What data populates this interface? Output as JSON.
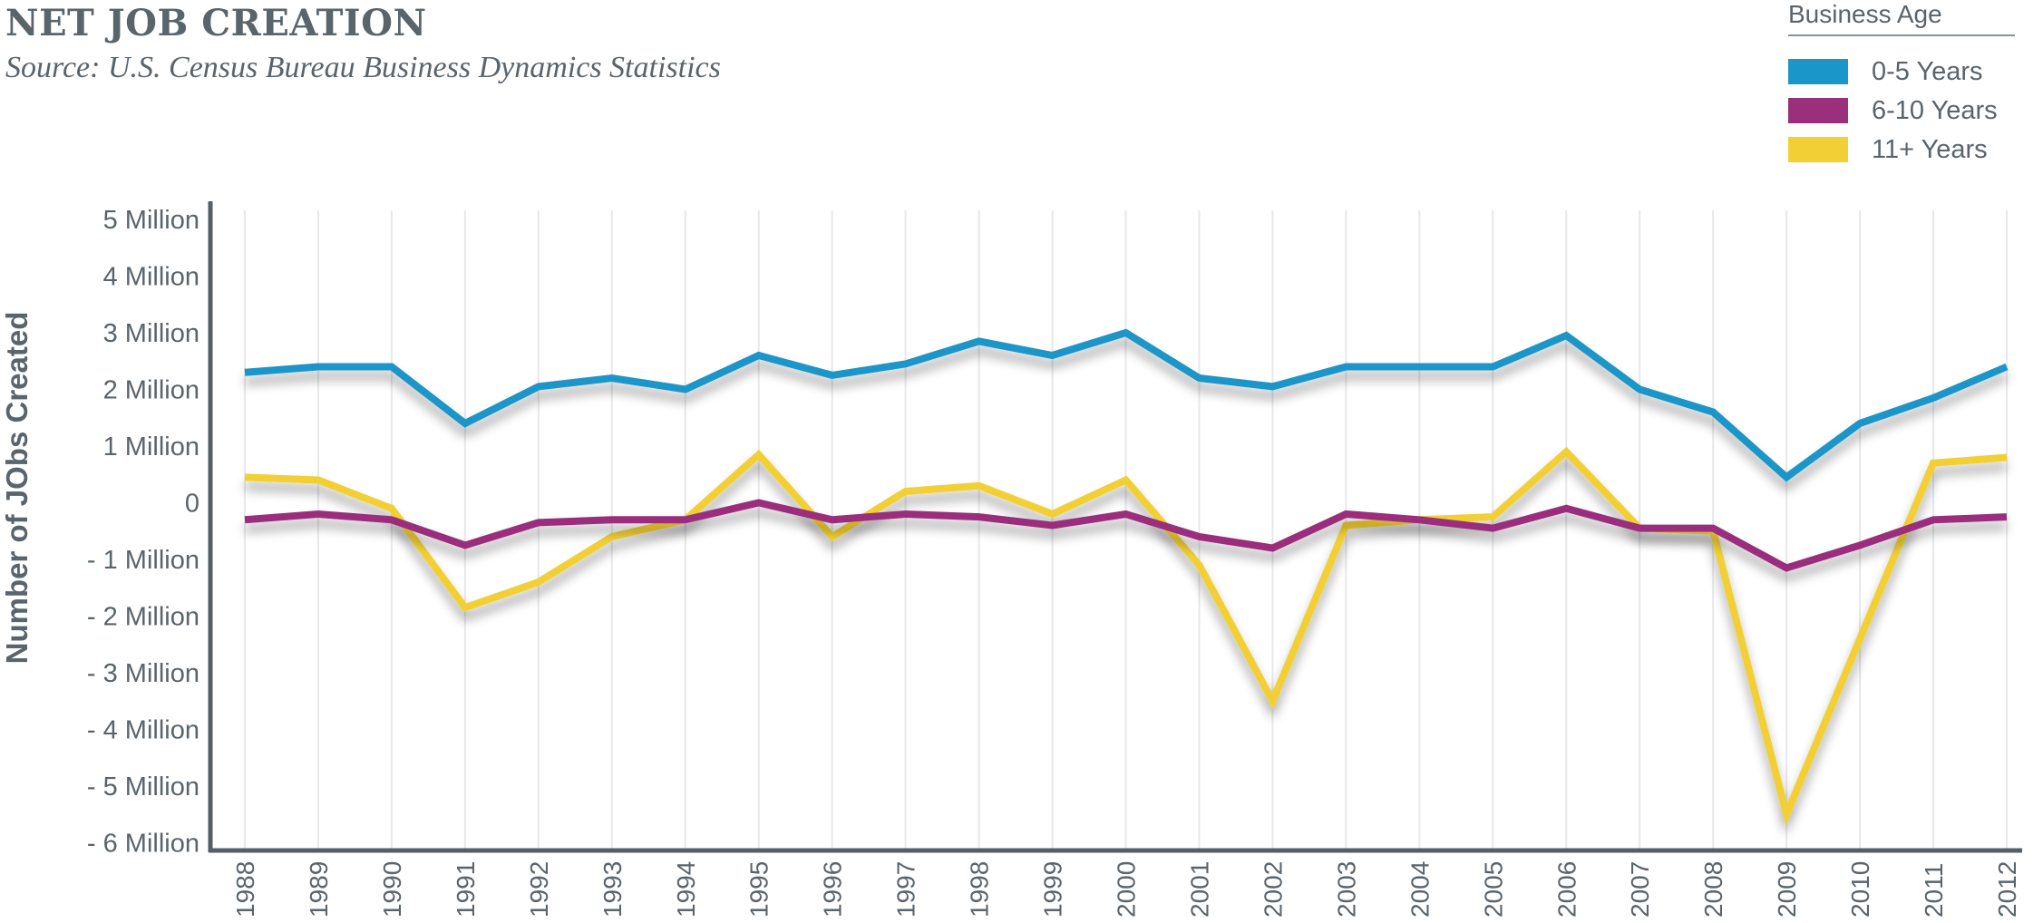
{
  "header": {
    "title": "NET JOB CREATION",
    "subtitle": "Source: U.S. Census Bureau Business Dynamics Statistics"
  },
  "chart_data": {
    "type": "line",
    "ylabel": "Number of JObs Created",
    "xlabel": "",
    "ylim": [
      -6.5,
      5
    ],
    "grid": "vertical",
    "legend": {
      "title": "Business Age",
      "placement": "top-right"
    },
    "y_ticks": [
      {
        "value": 5,
        "label": "5 Million"
      },
      {
        "value": 4,
        "label": "4 Million"
      },
      {
        "value": 3,
        "label": "3 Million"
      },
      {
        "value": 2,
        "label": "2 Million"
      },
      {
        "value": 1,
        "label": "1 Million"
      },
      {
        "value": 0,
        "label": "0"
      },
      {
        "value": -1,
        "label": "- 1 Million"
      },
      {
        "value": -2,
        "label": "- 2 Million"
      },
      {
        "value": -3,
        "label": "- 3 Million"
      },
      {
        "value": -4,
        "label": "- 4 Million"
      },
      {
        "value": -5,
        "label": "- 5 Million"
      },
      {
        "value": -6,
        "label": "- 6 Million"
      }
    ],
    "x": [
      "1988",
      "1989",
      "1990",
      "1991",
      "1992",
      "1993",
      "1994",
      "1995",
      "1996",
      "1997",
      "1998",
      "1999",
      "2000",
      "2001",
      "2002",
      "2003",
      "2004",
      "2005",
      "2006",
      "2007",
      "2008",
      "2009",
      "2010",
      "2011",
      "2012"
    ],
    "series": [
      {
        "name": "0-5 Years",
        "color": "#1a96c8",
        "values": [
          2.3,
          2.4,
          2.4,
          1.4,
          2.05,
          2.2,
          2.0,
          2.6,
          2.25,
          2.45,
          2.85,
          2.6,
          3.0,
          2.2,
          2.05,
          2.4,
          2.4,
          2.4,
          2.95,
          2.0,
          1.6,
          0.45,
          1.4,
          1.85,
          2.4
        ]
      },
      {
        "name": "6-10 Years",
        "color": "#9a2f7b",
        "values": [
          -0.3,
          -0.2,
          -0.3,
          -0.75,
          -0.35,
          -0.3,
          -0.3,
          0.0,
          -0.3,
          -0.2,
          -0.25,
          -0.4,
          -0.2,
          -0.6,
          -0.8,
          -0.2,
          -0.3,
          -0.45,
          -0.1,
          -0.45,
          -0.45,
          -1.15,
          -0.75,
          -0.3,
          -0.25
        ]
      },
      {
        "name": "11+ Years",
        "color": "#f2d035",
        "values": [
          0.45,
          0.4,
          -0.1,
          -1.85,
          -1.4,
          -0.6,
          -0.3,
          0.85,
          -0.6,
          0.2,
          0.3,
          -0.2,
          0.4,
          -1.1,
          -3.5,
          -0.4,
          -0.3,
          -0.25,
          0.9,
          -0.45,
          -0.5,
          -5.5,
          -2.4,
          0.7,
          0.8
        ]
      }
    ]
  }
}
